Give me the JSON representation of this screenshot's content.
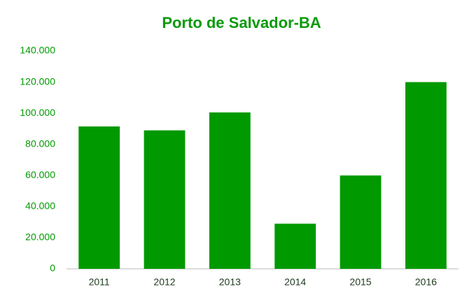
{
  "chart_data": {
    "type": "bar",
    "title": "Porto de Salvador-BA",
    "categories": [
      "2011",
      "2012",
      "2013",
      "2014",
      "2015",
      "2016"
    ],
    "values": [
      91500,
      89000,
      100500,
      29000,
      60000,
      120000
    ],
    "color": "#009900",
    "ylim": [
      0,
      140000
    ],
    "yticks": [
      0,
      {
        "value": 20000,
        "label": "20.000"
      },
      {
        "value": 40000,
        "label": "40.000"
      },
      {
        "value": 60000,
        "label": "60.000"
      },
      {
        "value": 80000,
        "label": "80.000"
      },
      {
        "value": 100000,
        "label": "100.000"
      },
      {
        "value": 120000,
        "label": "120.000"
      },
      {
        "value": 140000,
        "label": "140.000"
      }
    ],
    "grid": false
  }
}
